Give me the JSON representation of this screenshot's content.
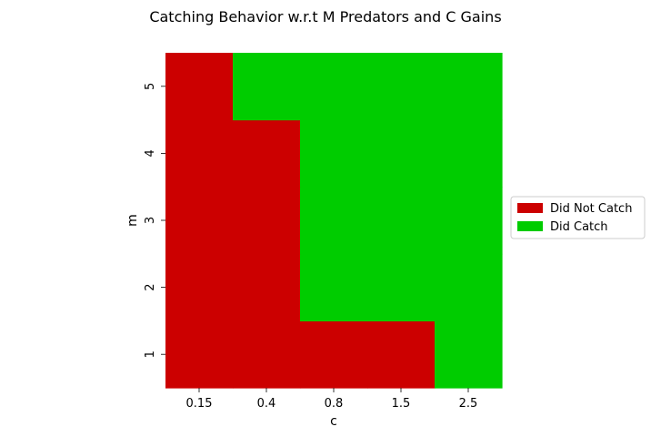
{
  "chart_data": {
    "type": "heatmap",
    "title": "Catching Behavior w.r.t M Predators and C Gains",
    "xlabel": "c",
    "ylabel": "m",
    "x_categories": [
      "0.15",
      "0.4",
      "0.8",
      "1.5",
      "2.5"
    ],
    "y_categories": [
      "1",
      "2",
      "3",
      "4",
      "5"
    ],
    "values": [
      [
        0,
        0,
        0,
        0,
        1
      ],
      [
        0,
        0,
        1,
        1,
        1
      ],
      [
        0,
        0,
        1,
        1,
        1
      ],
      [
        0,
        0,
        1,
        1,
        1
      ],
      [
        0,
        1,
        1,
        1,
        1
      ]
    ],
    "value_labels": {
      "0": "Did Not Catch",
      "1": "Did Catch"
    },
    "legend": [
      {
        "label": "Did Not Catch",
        "color": "#cc0000"
      },
      {
        "label": "Did Catch",
        "color": "#00cc00"
      }
    ],
    "legend_position": "right",
    "grid": false
  }
}
